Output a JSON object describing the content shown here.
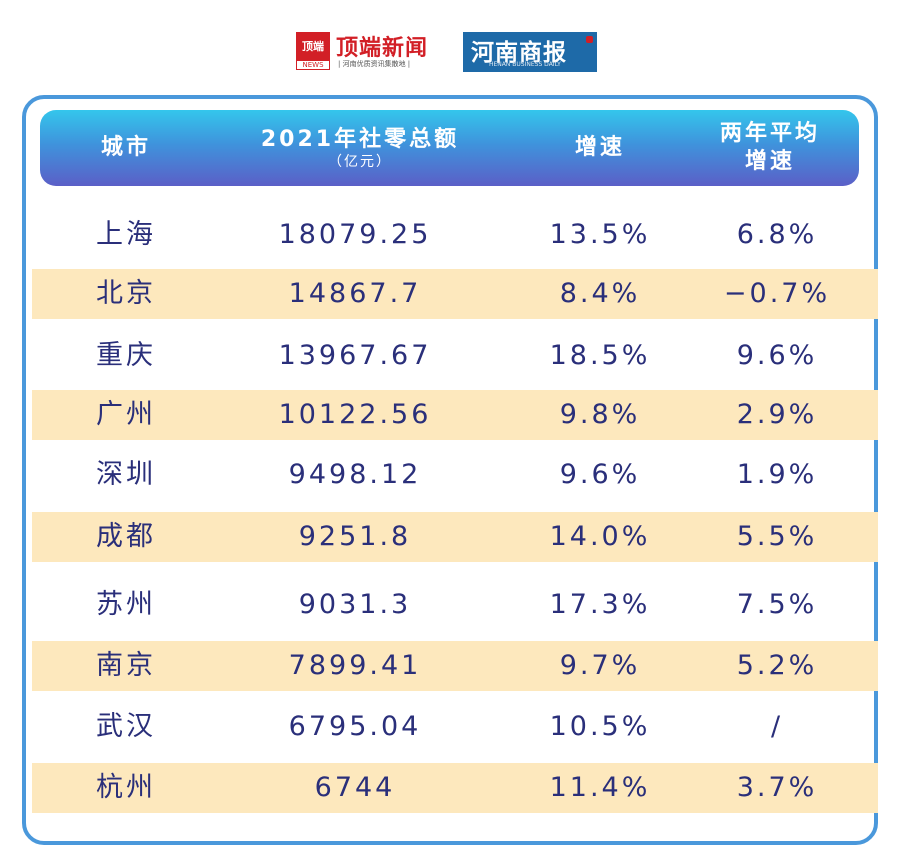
{
  "logos": {
    "dingduan_badge": "顶端",
    "dingduan_badge_sub": "NEWS",
    "dingduan_name": "顶端新闻",
    "dingduan_slogan": "| 河南优质资讯集散地 |",
    "henan_name": "河南商报",
    "henan_sub": "HENAN BUSINESS DAILY"
  },
  "colors": {
    "header_top": "#34c6ec",
    "header_bottom": "#5b5fc7",
    "row_highlight": "#fde8bd",
    "text": "#2a2f7a",
    "border": "#4a98db"
  },
  "header": {
    "city": "城市",
    "total": "2021年社零总额",
    "total_unit": "（亿元）",
    "growth": "增速",
    "avg_line1": "两年平均",
    "avg_line2": "增速"
  },
  "chart_data": {
    "type": "table",
    "columns": [
      "城市",
      "2021年社零总额（亿元）",
      "增速",
      "两年平均增速"
    ],
    "rows": [
      [
        "上海",
        "18079.25",
        "13.5%",
        "6.8%"
      ],
      [
        "北京",
        "14867.7",
        "8.4%",
        "−0.7%"
      ],
      [
        "重庆",
        "13967.67",
        "18.5%",
        "9.6%"
      ],
      [
        "广州",
        "10122.56",
        "9.8%",
        "2.9%"
      ],
      [
        "深圳",
        "9498.12",
        "9.6%",
        "1.9%"
      ],
      [
        "成都",
        "9251.8",
        "14.0%",
        "5.5%"
      ],
      [
        "苏州",
        "9031.3",
        "17.3%",
        "7.5%"
      ],
      [
        "南京",
        "7899.41",
        "9.7%",
        "5.2%"
      ],
      [
        "武汉",
        "6795.04",
        "10.5%",
        "/"
      ],
      [
        "杭州",
        "6744",
        "11.4%",
        "3.7%"
      ]
    ]
  }
}
